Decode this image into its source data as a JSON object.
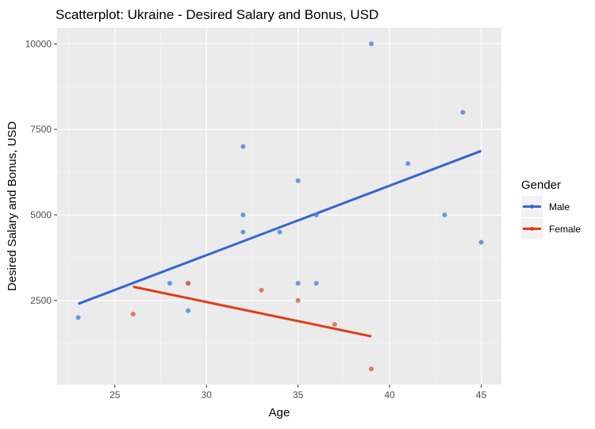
{
  "chart_data": {
    "type": "scatter",
    "title": "Scatterplot: Ukraine - Desired  Salary and Bonus, USD",
    "xlabel": "Age",
    "ylabel": "Desired Salary and Bonus, USD",
    "xlim": [
      21.85,
      46.1
    ],
    "ylim": [
      40,
      10470
    ],
    "xticks": [
      25,
      30,
      35,
      40,
      45
    ],
    "yticks": [
      2500,
      5000,
      7500,
      10000
    ],
    "grid": true,
    "legend": {
      "title": "Gender",
      "placement": "right"
    },
    "series": [
      {
        "name": "Male",
        "color": "#3366d6",
        "point_color": "#4f7fd9",
        "points": [
          [
            23,
            2000
          ],
          [
            28,
            3000
          ],
          [
            29,
            3000
          ],
          [
            29,
            2200
          ],
          [
            32,
            7000
          ],
          [
            32,
            5000
          ],
          [
            32,
            4500
          ],
          [
            34,
            4500
          ],
          [
            35,
            6000
          ],
          [
            35,
            3000
          ],
          [
            36,
            5000
          ],
          [
            36,
            3000
          ],
          [
            39,
            10000
          ],
          [
            41,
            6500
          ],
          [
            43,
            5000
          ],
          [
            44,
            8000
          ],
          [
            45,
            4200
          ]
        ],
        "fit": [
          [
            23,
            2400
          ],
          [
            45,
            6870
          ]
        ]
      },
      {
        "name": "Female",
        "color": "#e23b14",
        "point_color": "#e2583c",
        "points": [
          [
            26,
            2100
          ],
          [
            29,
            3000
          ],
          [
            33,
            2800
          ],
          [
            35,
            2500
          ],
          [
            37,
            1800
          ],
          [
            39,
            500
          ]
        ],
        "fit": [
          [
            26,
            2900
          ],
          [
            39,
            1450
          ]
        ]
      }
    ]
  }
}
